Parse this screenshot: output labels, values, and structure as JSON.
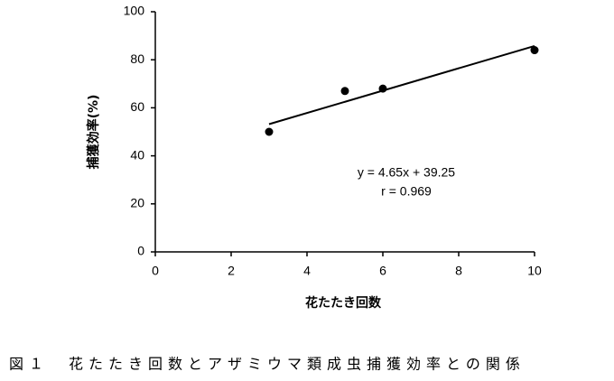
{
  "chart_data": {
    "type": "scatter",
    "x_label": "花たたき回数",
    "y_label": "捕獲効率(%)",
    "x": [
      3,
      5,
      6,
      10
    ],
    "values": [
      50,
      67,
      68,
      84
    ],
    "color": "#000000",
    "trendline": {
      "x": [
        3,
        10
      ],
      "y": [
        53.2,
        85.75
      ]
    },
    "annotations": [
      "y = 4.65x + 39.25",
      "r = 0.969"
    ],
    "xlim": [
      0,
      10
    ],
    "xticks": [
      0,
      2,
      4,
      6,
      8,
      10
    ],
    "ylim": [
      0,
      100
    ],
    "yticks": [
      0,
      20,
      40,
      60,
      80,
      100
    ],
    "grid": false
  },
  "caption": "図１　花たたき回数とアザミウマ類成虫捕獲効率との関係"
}
